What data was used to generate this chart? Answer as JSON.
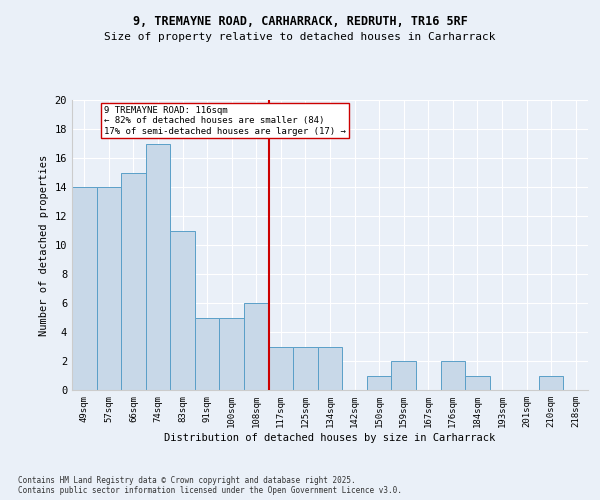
{
  "title1": "9, TREMAYNE ROAD, CARHARRACK, REDRUTH, TR16 5RF",
  "title2": "Size of property relative to detached houses in Carharrack",
  "xlabel": "Distribution of detached houses by size in Carharrack",
  "ylabel": "Number of detached properties",
  "categories": [
    "49sqm",
    "57sqm",
    "66sqm",
    "74sqm",
    "83sqm",
    "91sqm",
    "100sqm",
    "108sqm",
    "117sqm",
    "125sqm",
    "134sqm",
    "142sqm",
    "150sqm",
    "159sqm",
    "167sqm",
    "176sqm",
    "184sqm",
    "193sqm",
    "201sqm",
    "210sqm",
    "218sqm"
  ],
  "values": [
    14,
    14,
    15,
    17,
    11,
    5,
    5,
    6,
    3,
    3,
    3,
    0,
    1,
    2,
    0,
    2,
    1,
    0,
    0,
    1,
    0
  ],
  "bar_color": "#c8d8e8",
  "bar_edge_color": "#5a9fc8",
  "vline_x_index": 8,
  "vline_color": "#cc0000",
  "annotation_text": "9 TREMAYNE ROAD: 116sqm\n← 82% of detached houses are smaller (84)\n17% of semi-detached houses are larger (17) →",
  "annotation_box_color": "#ffffff",
  "annotation_box_edge_color": "#cc0000",
  "ylim": [
    0,
    20
  ],
  "yticks": [
    0,
    2,
    4,
    6,
    8,
    10,
    12,
    14,
    16,
    18,
    20
  ],
  "footer1": "Contains HM Land Registry data © Crown copyright and database right 2025.",
  "footer2": "Contains public sector information licensed under the Open Government Licence v3.0.",
  "bg_color": "#eaf0f8"
}
